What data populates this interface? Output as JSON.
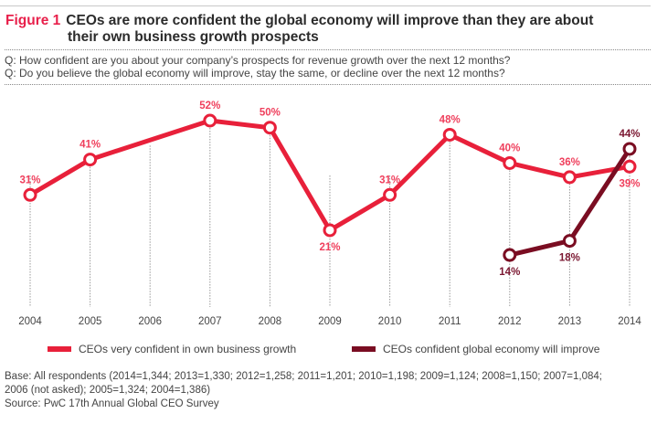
{
  "figure_label": "Figure 1",
  "title_line1": "CEOs are more confident the global economy will improve than they are about",
  "title_line2": "their own business growth prospects",
  "question1": "Q: How confident are you about your company’s prospects for revenue growth over the next 12 months?",
  "question2": "Q: Do you believe the global economy will improve, stay the same, or decline over the next 12 months?",
  "base_line1": "Base: All respondents (2014=1,344; 2013=1,330; 2012=1,258; 2011=1,201; 2010=1,198; 2009=1,124; 2008=1,150; 2007=1,084;",
  "base_line2": "2006 (not asked); 2005=1,324; 2004=1,386)",
  "source": "Source: PwC 17th Annual Global CEO Survey",
  "colors": {
    "accent": "#e8204b",
    "series1": "#e8203a",
    "series2": "#7a0d22"
  },
  "chart_data": {
    "type": "line",
    "title": "CEOs are more confident the global economy will improve than they are about their own business growth prospects",
    "xlabel": "",
    "ylabel": "",
    "x": [
      "2004",
      "2005",
      "2006",
      "2007",
      "2008",
      "2009",
      "2010",
      "2011",
      "2012",
      "2013",
      "2014"
    ],
    "grid": "vertical dotted lines at each year",
    "legend_position": "bottom",
    "series": [
      {
        "name": "CEOs very confident in own business growth",
        "values": [
          31,
          41,
          null,
          52,
          50,
          21,
          31,
          48,
          40,
          36,
          39
        ],
        "labels": [
          "31%",
          "41%",
          "",
          "52%",
          "50%",
          "21%",
          "31%",
          "48%",
          "40%",
          "36%",
          "39%"
        ],
        "note": "2006 not asked; line connects 2005 to 2007"
      },
      {
        "name": "CEOs confident global economy will improve",
        "values": [
          null,
          null,
          null,
          null,
          null,
          null,
          null,
          null,
          14,
          18,
          44
        ],
        "labels": [
          "",
          "",
          "",
          "",
          "",
          "",
          "",
          "",
          "14%",
          "18%",
          "44%"
        ]
      }
    ]
  }
}
